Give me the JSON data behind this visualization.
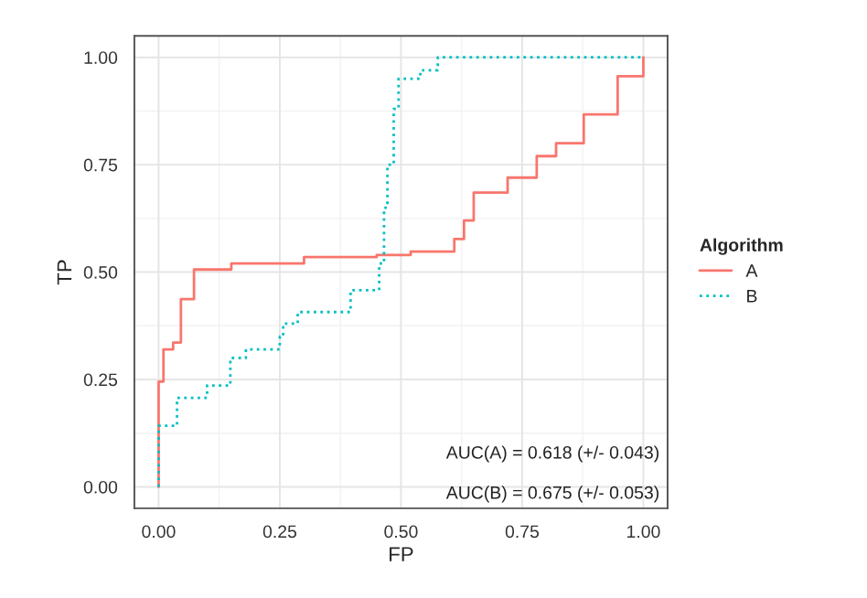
{
  "chart_data": {
    "type": "step",
    "xlabel": "FP",
    "ylabel": "TP",
    "legend_title": "Algorithm",
    "xlim": [
      -0.05,
      1.05
    ],
    "ylim": [
      -0.05,
      1.05
    ],
    "xticks": [
      {
        "value": 0,
        "label": "0.00"
      },
      {
        "value": 0.25,
        "label": "0.25"
      },
      {
        "value": 0.5,
        "label": "0.50"
      },
      {
        "value": 0.75,
        "label": "0.75"
      },
      {
        "value": 1,
        "label": "1.00"
      }
    ],
    "yticks": [
      {
        "value": 0,
        "label": "0.00"
      },
      {
        "value": 0.25,
        "label": "0.25"
      },
      {
        "value": 0.5,
        "label": "0.50"
      },
      {
        "value": 0.75,
        "label": "0.75"
      },
      {
        "value": 1,
        "label": "1.00"
      }
    ],
    "grid": true,
    "legend": "right",
    "marker": "none",
    "series": [
      {
        "name": "A",
        "color": "#f8766d",
        "line_style": "solid",
        "x": [
          0,
          0,
          0.01,
          0.03,
          0.046,
          0.073,
          0.15,
          0.3,
          0.45,
          0.52,
          0.61,
          0.63,
          0.65,
          0.72,
          0.78,
          0.82,
          0.877,
          0.947,
          1.0
        ],
        "values": [
          0,
          0.245,
          0.32,
          0.336,
          0.437,
          0.506,
          0.52,
          0.535,
          0.54,
          0.548,
          0.577,
          0.62,
          0.685,
          0.72,
          0.77,
          0.8,
          0.867,
          0.956,
          1.0
        ]
      },
      {
        "name": "B",
        "color": "#00bfc4",
        "line_style": "dotted",
        "x": [
          0,
          0,
          0.038,
          0.1,
          0.148,
          0.18,
          0.25,
          0.257,
          0.287,
          0.396,
          0.455,
          0.465,
          0.472,
          0.485,
          0.495,
          0.54,
          0.576,
          1.0
        ],
        "values": [
          0,
          0.142,
          0.207,
          0.236,
          0.3,
          0.32,
          0.35,
          0.38,
          0.407,
          0.458,
          0.52,
          0.65,
          0.75,
          0.88,
          0.95,
          0.97,
          1.0,
          1.0
        ]
      }
    ],
    "annotations": [
      "AUC(A) = 0.618 (+/- 0.043)",
      "AUC(B) = 0.675 (+/- 0.053)"
    ]
  }
}
